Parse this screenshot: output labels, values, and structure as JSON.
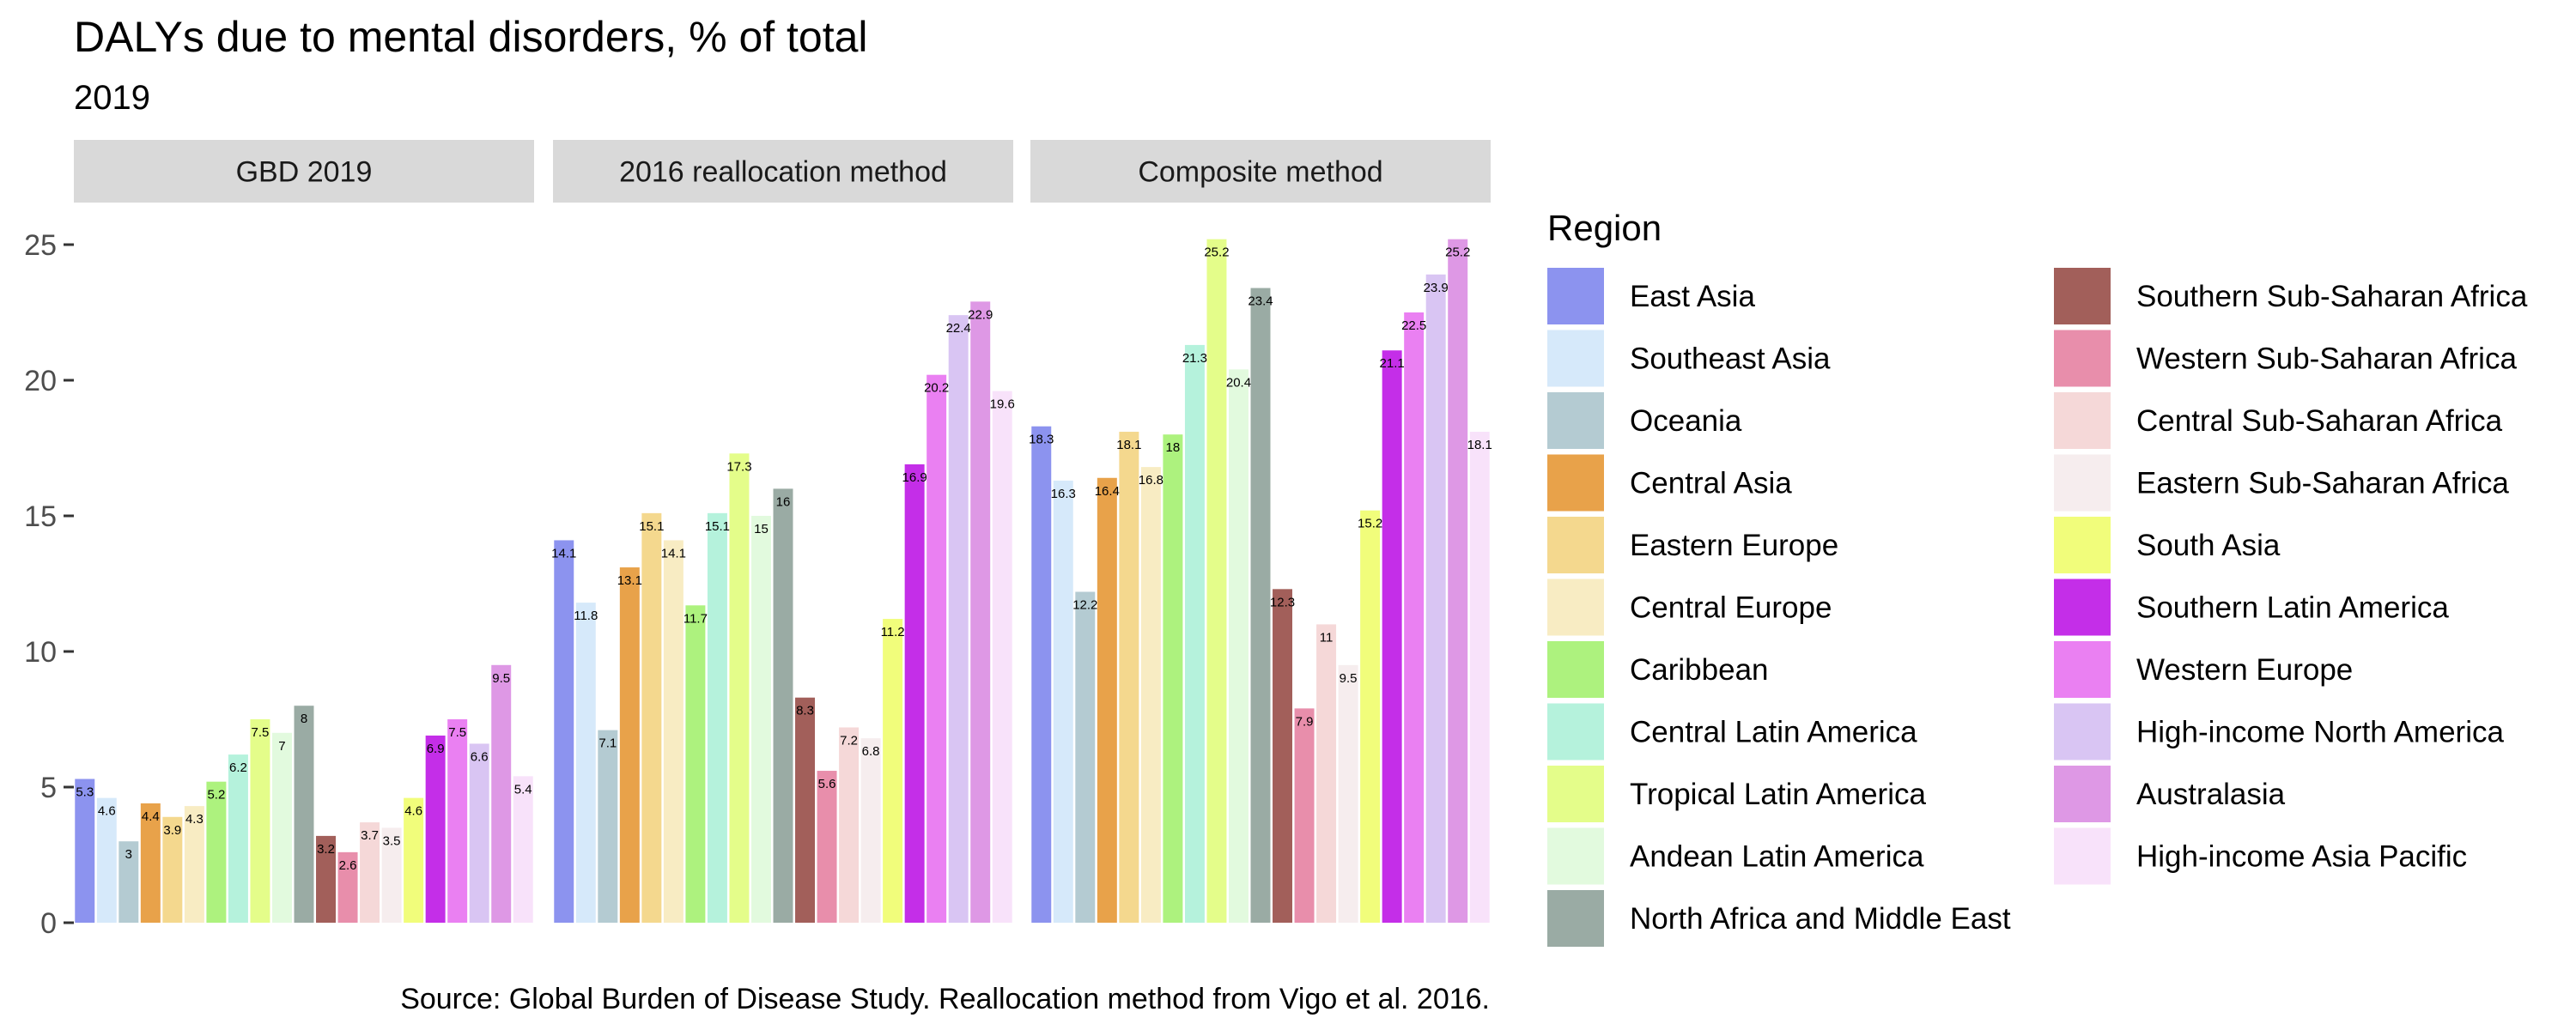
{
  "chart_data": {
    "type": "bar",
    "title": "DALYs due to mental disorders, % of total",
    "subtitle": "2019",
    "caption": "Source: Global Burden of Disease Study. Reallocation method from Vigo et al. 2016.",
    "ylim": [
      0,
      26
    ],
    "yticks": [
      0,
      5,
      10,
      15,
      20,
      25
    ],
    "grid": false,
    "legend_title": "Region",
    "legend_position": "right",
    "panels": [
      "GBD 2019",
      "2016 reallocation method",
      "Composite method"
    ],
    "series": [
      {
        "name": "East Asia",
        "color": "#8c93ef",
        "values": [
          5.3,
          14.1,
          18.3
        ]
      },
      {
        "name": "Southeast Asia",
        "color": "#d6e9fa",
        "values": [
          4.6,
          11.8,
          16.3
        ]
      },
      {
        "name": "Oceania",
        "color": "#b4cbd2",
        "values": [
          3,
          7.1,
          12.2
        ]
      },
      {
        "name": "Central Asia",
        "color": "#e8a24a",
        "values": [
          4.4,
          13.1,
          16.4
        ]
      },
      {
        "name": "Eastern Europe",
        "color": "#f4d88e",
        "values": [
          3.9,
          15.1,
          18.1
        ]
      },
      {
        "name": "Central Europe",
        "color": "#f8ecc3",
        "values": [
          4.3,
          14.1,
          16.8
        ]
      },
      {
        "name": "Caribbean",
        "color": "#adf27e",
        "values": [
          5.2,
          11.7,
          18
        ]
      },
      {
        "name": "Central Latin America",
        "color": "#b5f2dc",
        "values": [
          6.2,
          15.1,
          21.3
        ]
      },
      {
        "name": "Tropical Latin America",
        "color": "#e4fd8a",
        "values": [
          7.5,
          17.3,
          25.2
        ]
      },
      {
        "name": "Andean Latin America",
        "color": "#e2fade",
        "values": [
          7,
          15,
          20.4
        ]
      },
      {
        "name": "North Africa and Middle East",
        "color": "#9aaba4",
        "values": [
          8,
          16,
          23.4
        ]
      },
      {
        "name": "Southern Sub-Saharan Africa",
        "color": "#a25f5a",
        "values": [
          3.2,
          8.3,
          12.3
        ]
      },
      {
        "name": "Western Sub-Saharan Africa",
        "color": "#e88eab",
        "values": [
          2.6,
          5.6,
          7.9
        ]
      },
      {
        "name": "Central Sub-Saharan Africa",
        "color": "#f5d8d8",
        "values": [
          3.7,
          7.2,
          11
        ]
      },
      {
        "name": "Eastern Sub-Saharan Africa",
        "color": "#f6edee",
        "values": [
          3.5,
          6.8,
          9.5
        ]
      },
      {
        "name": "South Asia",
        "color": "#f1fd7b",
        "values": [
          4.6,
          11.2,
          15.2
        ]
      },
      {
        "name": "Southern Latin America",
        "color": "#c42ee8",
        "values": [
          6.9,
          16.9,
          21.1
        ]
      },
      {
        "name": "Western Europe",
        "color": "#ea80f2",
        "values": [
          7.5,
          20.2,
          22.5
        ]
      },
      {
        "name": "High-income North America",
        "color": "#d9c5f3",
        "values": [
          6.6,
          22.4,
          23.9
        ]
      },
      {
        "name": "Australasia",
        "color": "#de98e5",
        "values": [
          9.5,
          22.9,
          25.2
        ]
      },
      {
        "name": "High-income Asia Pacific",
        "color": "#f8e2fa",
        "values": [
          5.4,
          19.6,
          18.1
        ]
      }
    ]
  }
}
